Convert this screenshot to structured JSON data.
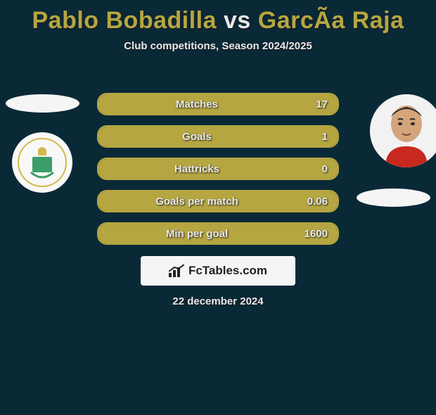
{
  "title": {
    "left": "Pablo Bobadilla",
    "mid": "vs",
    "right": "GarcÃ­a Raja"
  },
  "subtitle": "Club competitions, Season 2024/2025",
  "colors": {
    "background": "#0a2937",
    "accent": "#b5a642",
    "text": "#e8e8e8"
  },
  "stats": [
    {
      "label": "Matches",
      "right_value": "17",
      "fill_pct": 100
    },
    {
      "label": "Goals",
      "right_value": "1",
      "fill_pct": 100
    },
    {
      "label": "Hattricks",
      "right_value": "0",
      "fill_pct": 100
    },
    {
      "label": "Goals per match",
      "right_value": "0.06",
      "fill_pct": 100
    },
    {
      "label": "Min per goal",
      "right_value": "1600",
      "fill_pct": 100
    }
  ],
  "brand": "FcTables.com",
  "date": "22 december 2024",
  "badges": {
    "left_alt": "Racing Santander crest",
    "right_alt": "García Raja photo"
  }
}
